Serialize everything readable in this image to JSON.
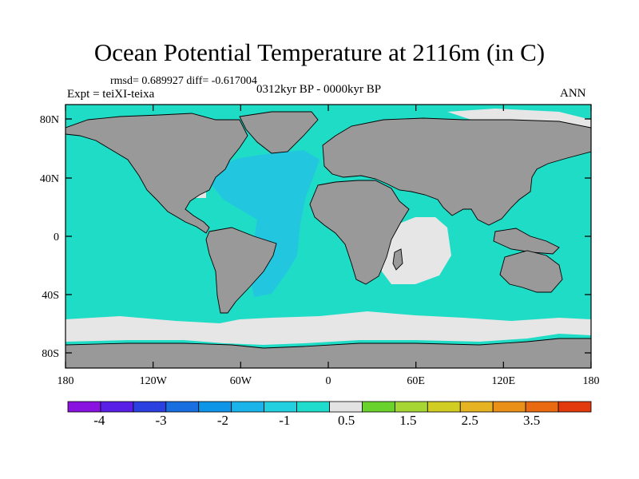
{
  "title": "Ocean Potential Temperature at 2116m (in C)",
  "stats": "rmsd= 0.689927 diff= -0.617004",
  "experiment": "Expt = teiXI-teixa",
  "period": "0312kyr BP - 0000kyr BP",
  "season": "ANN",
  "y_ticks": [
    "80N",
    "40N",
    "0",
    "40S",
    "80S"
  ],
  "x_ticks": [
    "180",
    "120W",
    "60W",
    "0",
    "60E",
    "120E",
    "180"
  ],
  "colorbar": {
    "colors": [
      "#8a12e0",
      "#5a1fe6",
      "#2a40e0",
      "#1a6fe0",
      "#0f95e8",
      "#1ab4ea",
      "#23d0df",
      "#1fdccc",
      "#e3e3e3",
      "#6ad22c",
      "#a6d634",
      "#d2cd22",
      "#e6b322",
      "#ea8f18",
      "#ea6a12",
      "#e23a0c"
    ],
    "labels": [
      "-4",
      "-3",
      "-2",
      "-1",
      "0.5",
      "1.5",
      "2.5",
      "3.5"
    ]
  },
  "map_colors": {
    "land": "#999999",
    "ocean": "#1fdcc6",
    "atlantic": "#23c6df",
    "near_zero": "#e6e6e6",
    "warm": "#ea5a14"
  }
}
